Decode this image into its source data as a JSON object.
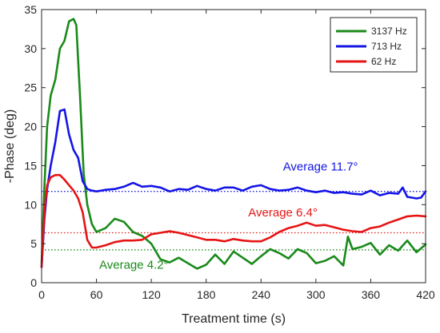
{
  "chart_data": {
    "type": "line",
    "xlabel": "Treatment time (s)",
    "ylabel": "-Phase (deg)",
    "xlim": [
      0,
      420
    ],
    "ylim": [
      0,
      35
    ],
    "xticks": [
      "0",
      "60",
      "120",
      "180",
      "240",
      "300",
      "360",
      "420"
    ],
    "yticks": [
      "0",
      "5",
      "10",
      "15",
      "20",
      "25",
      "30",
      "35"
    ],
    "grid": false,
    "legend_position": "top-right",
    "series": [
      {
        "name": "3137 Hz",
        "color": "#1a8a1a",
        "x": [
          0,
          3,
          6,
          10,
          15,
          20,
          25,
          30,
          35,
          38,
          42,
          46,
          50,
          55,
          60,
          70,
          80,
          90,
          100,
          110,
          120,
          130,
          140,
          150,
          160,
          170,
          180,
          190,
          200,
          210,
          220,
          230,
          240,
          250,
          260,
          270,
          280,
          290,
          300,
          310,
          320,
          330,
          335,
          340,
          350,
          360,
          370,
          380,
          390,
          400,
          410,
          420
        ],
        "values": [
          2.5,
          12,
          20,
          24,
          26,
          30,
          31,
          33.5,
          33.8,
          33,
          24,
          14,
          10,
          7.5,
          6.5,
          7,
          8.2,
          7.8,
          6.5,
          6,
          5,
          3,
          2.6,
          3.2,
          2.5,
          1.8,
          2.3,
          3.6,
          2.4,
          4,
          3.2,
          2.4,
          3.4,
          4.3,
          3.8,
          3.1,
          4.3,
          3.8,
          2.5,
          2.8,
          3.4,
          2.2,
          5.9,
          4.3,
          4.6,
          5.1,
          3.6,
          4.8,
          4.1,
          5.4,
          3.9,
          4.9
        ]
      },
      {
        "name": "713 Hz",
        "color": "#1414e6",
        "x": [
          0,
          3,
          6,
          10,
          15,
          20,
          25,
          30,
          35,
          40,
          45,
          50,
          55,
          60,
          70,
          80,
          90,
          100,
          110,
          120,
          130,
          140,
          150,
          160,
          170,
          180,
          190,
          200,
          210,
          220,
          230,
          240,
          250,
          260,
          270,
          280,
          290,
          300,
          310,
          320,
          330,
          340,
          350,
          360,
          370,
          380,
          390,
          395,
          400,
          410,
          415,
          420
        ],
        "values": [
          2,
          8,
          12,
          15,
          18,
          22,
          22.2,
          19,
          17,
          16,
          13,
          12,
          11.8,
          11.7,
          11.9,
          12,
          12.3,
          12.8,
          12.3,
          12.4,
          12.2,
          11.7,
          12,
          11.9,
          12.4,
          12,
          11.8,
          12.2,
          12.2,
          11.8,
          12.3,
          12.5,
          12,
          11.8,
          11.9,
          12.2,
          11.8,
          11.6,
          11.8,
          11.5,
          11.6,
          11.4,
          11.3,
          11.8,
          11.2,
          11.5,
          11.4,
          12.2,
          11,
          10.8,
          10.9,
          11.7
        ]
      },
      {
        "name": "62 Hz",
        "color": "#e61414",
        "x": [
          0,
          3,
          6,
          10,
          15,
          20,
          25,
          30,
          35,
          40,
          45,
          50,
          55,
          60,
          70,
          80,
          90,
          100,
          110,
          120,
          130,
          140,
          150,
          160,
          170,
          180,
          190,
          200,
          210,
          220,
          230,
          240,
          250,
          260,
          270,
          280,
          290,
          300,
          310,
          320,
          330,
          340,
          350,
          360,
          370,
          380,
          390,
          400,
          410,
          420
        ],
        "values": [
          2,
          9,
          12.5,
          13.5,
          13.8,
          13.8,
          13.2,
          12.5,
          11.8,
          10.8,
          9,
          5.5,
          4.5,
          4.5,
          4.8,
          5.2,
          5.4,
          5.4,
          5.5,
          6.2,
          6.4,
          6.6,
          6.4,
          6.1,
          5.8,
          5.5,
          5.5,
          5.3,
          5.6,
          5.4,
          5.3,
          5.3,
          5.8,
          6.5,
          7,
          7.3,
          7.7,
          7.3,
          7.4,
          7.1,
          6.8,
          6.6,
          6.5,
          7,
          7.2,
          7.7,
          8.1,
          8.5,
          8.6,
          8.5
        ]
      }
    ],
    "reference_lines": [
      {
        "value": 11.7,
        "color": "#1414e6",
        "label": "Average 11.7°"
      },
      {
        "value": 6.4,
        "color": "#e61414",
        "label": "Average 6.4°"
      },
      {
        "value": 4.2,
        "color": "#1a8a1a",
        "label": "Average 4.2°"
      }
    ],
    "annotations": [
      {
        "text": "Average 11.7°",
        "color": "#1414e6",
        "x": 264,
        "y": 14.4
      },
      {
        "text": "Average 6.4°",
        "color": "#e61414",
        "x": 226,
        "y": 8.5
      },
      {
        "text": "Average 4.2°",
        "color": "#1a8a1a",
        "x": 63,
        "y": 1.8
      }
    ]
  }
}
